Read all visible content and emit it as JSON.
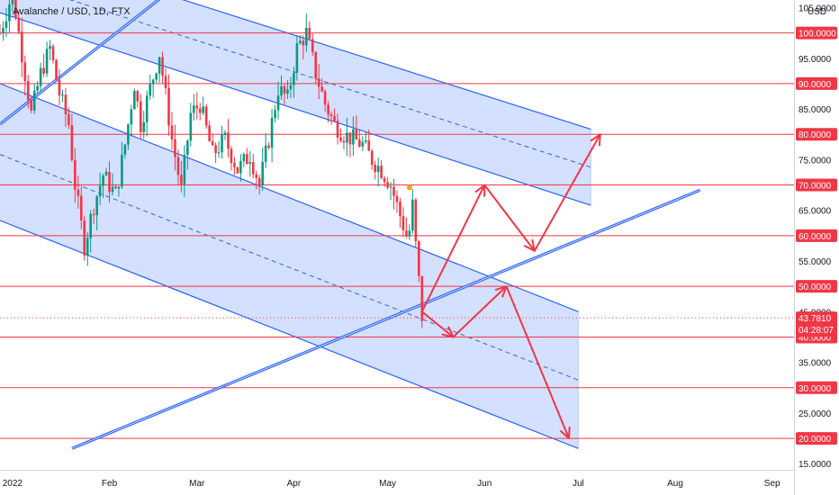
{
  "chart_data": {
    "type": "candlestick",
    "title": "Avalanche / USD, 1D, FTX",
    "currency": "USD",
    "x_labels": [
      "2022",
      "Feb",
      "Mar",
      "Apr",
      "May",
      "Jun",
      "Jul",
      "Aug",
      "Sep"
    ],
    "x_dates": [
      "2022-01-01",
      "2022-02-01",
      "2022-03-01",
      "2022-04-01",
      "2022-05-01",
      "2022-06-01",
      "2022-07-01",
      "2022-08-01",
      "2022-09-01"
    ],
    "xlim": [
      "2021-12-28",
      "2022-09-08"
    ],
    "ylim": [
      13.8,
      106.5
    ],
    "y_ticks": [
      15,
      25,
      35,
      45,
      55,
      65,
      75,
      85,
      95,
      105
    ],
    "y_tick_labels": [
      "15.0000",
      "25.0000",
      "35.0000",
      "45.0000",
      "55.0000",
      "65.0000",
      "75.0000",
      "85.0000",
      "95.0000",
      "105.0000"
    ],
    "levels": [
      20,
      30,
      40,
      50,
      60,
      70,
      80,
      90,
      100
    ],
    "level_labels": [
      "20.0000",
      "30.0000",
      "40.0000",
      "50.0000",
      "60.0000",
      "70.0000",
      "80.0000",
      "90.0000",
      "100.0000"
    ],
    "current_price": 43.781,
    "current_price_label": "43.7810",
    "countdown_label": "04:28:07",
    "price_path": [
      [
        "2021-12-28",
        100
      ],
      [
        "2022-01-01",
        108
      ],
      [
        "2022-01-04",
        96
      ],
      [
        "2022-01-07",
        84
      ],
      [
        "2022-01-10",
        92
      ],
      [
        "2022-01-13",
        97
      ],
      [
        "2022-01-16",
        88
      ],
      [
        "2022-01-19",
        82
      ],
      [
        "2022-01-21",
        70
      ],
      [
        "2022-01-24",
        58
      ],
      [
        "2022-01-27",
        66
      ],
      [
        "2022-01-30",
        72
      ],
      [
        "2022-02-03",
        68
      ],
      [
        "2022-02-06",
        78
      ],
      [
        "2022-02-09",
        90
      ],
      [
        "2022-02-11",
        82
      ],
      [
        "2022-02-14",
        89
      ],
      [
        "2022-02-17",
        96
      ],
      [
        "2022-02-21",
        79
      ],
      [
        "2022-02-24",
        69
      ],
      [
        "2022-02-27",
        84
      ],
      [
        "2022-03-02",
        86
      ],
      [
        "2022-03-06",
        76
      ],
      [
        "2022-03-10",
        79
      ],
      [
        "2022-03-14",
        73
      ],
      [
        "2022-03-18",
        76
      ],
      [
        "2022-03-21",
        70
      ],
      [
        "2022-03-24",
        79
      ],
      [
        "2022-03-27",
        89
      ],
      [
        "2022-03-30",
        87
      ],
      [
        "2022-04-02",
        97
      ],
      [
        "2022-04-05",
        100
      ],
      [
        "2022-04-08",
        92
      ],
      [
        "2022-04-11",
        86
      ],
      [
        "2022-04-14",
        82
      ],
      [
        "2022-04-17",
        80
      ],
      [
        "2022-04-20",
        79
      ],
      [
        "2022-04-23",
        78
      ],
      [
        "2022-04-26",
        75
      ],
      [
        "2022-04-29",
        73
      ],
      [
        "2022-05-02",
        70
      ],
      [
        "2022-05-05",
        64
      ],
      [
        "2022-05-07",
        60
      ],
      [
        "2022-05-08",
        61
      ],
      [
        "2022-05-09",
        66
      ],
      [
        "2022-05-10",
        58
      ],
      [
        "2022-05-11",
        51
      ],
      [
        "2022-05-12",
        44
      ]
    ],
    "channel_upper": {
      "upper_line": [
        [
          "2021-12-28",
          118
        ],
        [
          "2022-07-05",
          81
        ]
      ],
      "mid_line": [
        [
          "2021-12-28",
          111
        ],
        [
          "2022-07-05",
          73.5
        ]
      ],
      "lower_line": [
        [
          "2021-12-28",
          104
        ],
        [
          "2022-07-05",
          66
        ]
      ]
    },
    "channel_lower": {
      "upper_line": [
        [
          "2021-12-28",
          90
        ],
        [
          "2022-07-01",
          45
        ]
      ],
      "mid_line": [
        [
          "2021-12-28",
          76
        ],
        [
          "2022-07-01",
          31.5
        ]
      ],
      "lower_line": [
        [
          "2021-12-28",
          63
        ],
        [
          "2022-07-01",
          18
        ]
      ]
    },
    "trendlines": [
      [
        [
          "2022-01-20",
          18
        ],
        [
          "2022-08-09",
          69
        ]
      ],
      [
        [
          "2021-12-28",
          82
        ],
        [
          "2022-02-28",
          112
        ]
      ]
    ],
    "projection_arrows": [
      [
        [
          "2022-05-12",
          45
        ],
        [
          "2022-06-01",
          70
        ],
        [
          "2022-06-17",
          57
        ],
        [
          "2022-07-08",
          80
        ]
      ],
      [
        [
          "2022-05-12",
          45
        ],
        [
          "2022-05-22",
          40
        ],
        [
          "2022-06-08",
          50
        ],
        [
          "2022-06-28",
          20
        ]
      ]
    ],
    "marker_point": [
      "2022-05-08",
      69.5
    ]
  }
}
